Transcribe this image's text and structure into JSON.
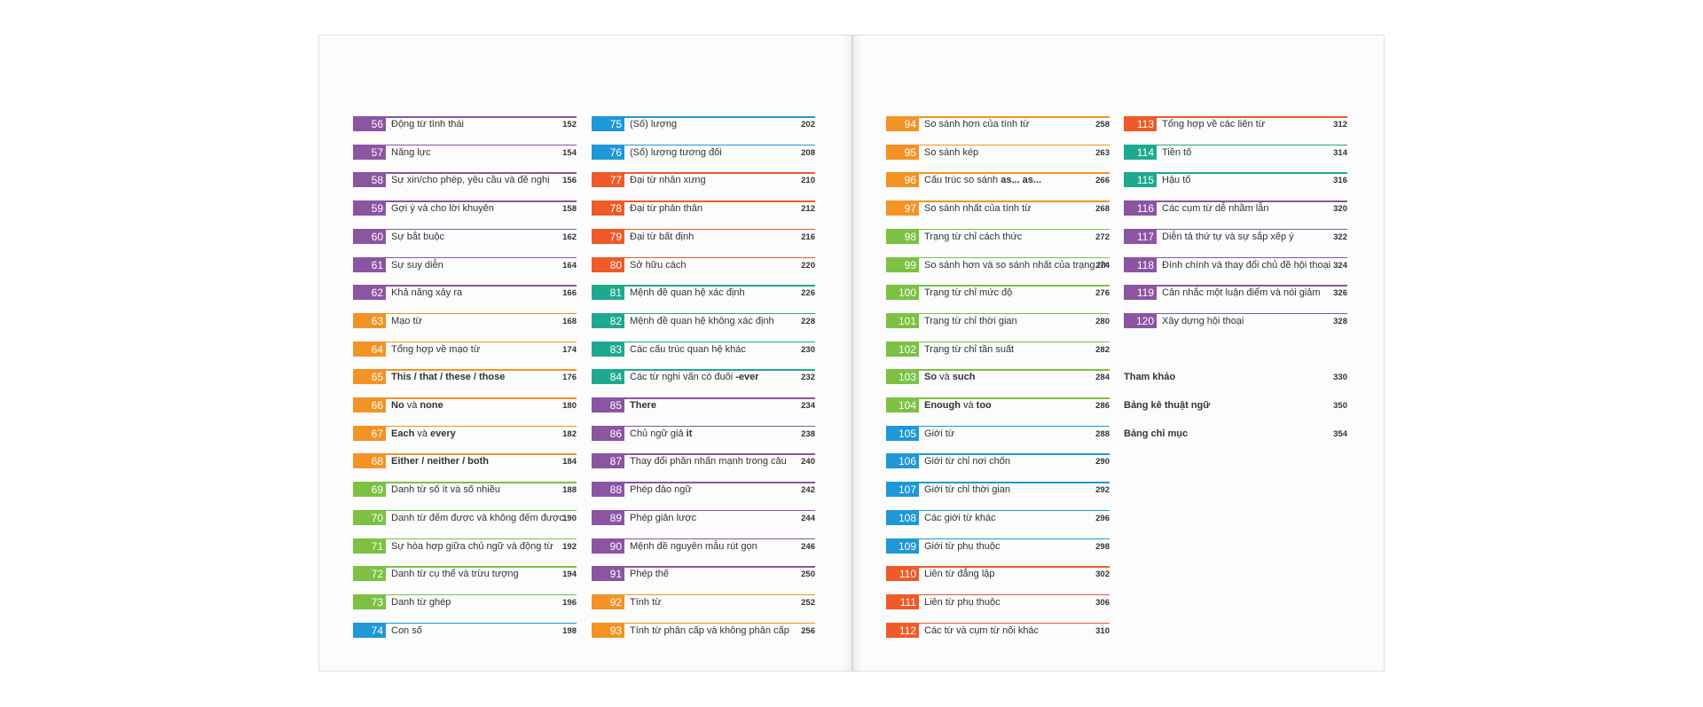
{
  "columns": [
    {
      "entries": [
        {
          "number": 56,
          "title": "Động từ tình thái",
          "page": 152,
          "color": "#8b55a2"
        },
        {
          "number": 57,
          "title": "Năng lực",
          "page": 154,
          "color": "#8b55a2"
        },
        {
          "number": 58,
          "title": "Sự xin/cho phép, yêu cầu và đề nghị",
          "page": 156,
          "color": "#8b55a2"
        },
        {
          "number": 59,
          "title": "Gợi ý và cho lời khuyên",
          "page": 158,
          "color": "#8b55a2"
        },
        {
          "number": 60,
          "title": "Sự bắt buộc",
          "page": 162,
          "color": "#8b55a2"
        },
        {
          "number": 61,
          "title": "Sự suy diễn",
          "page": 164,
          "color": "#8b55a2"
        },
        {
          "number": 62,
          "title": "Khả năng xảy ra",
          "page": 166,
          "color": "#8b55a2"
        },
        {
          "number": 63,
          "title": "Mạo từ",
          "page": 168,
          "color": "#f39325"
        },
        {
          "number": 64,
          "title": "Tổng hợp về mạo từ",
          "page": 174,
          "color": "#f39325"
        },
        {
          "number": 65,
          "title": [
            {
              "text": "This / that / these / those",
              "bold": true
            }
          ],
          "page": 176,
          "color": "#f39325"
        },
        {
          "number": 66,
          "title": [
            {
              "text": "No",
              "bold": true
            },
            {
              "text": " và ",
              "bold": false
            },
            {
              "text": "none",
              "bold": true
            }
          ],
          "page": 180,
          "color": "#f39325"
        },
        {
          "number": 67,
          "title": [
            {
              "text": "Each",
              "bold": true
            },
            {
              "text": " và ",
              "bold": false
            },
            {
              "text": "every",
              "bold": true
            }
          ],
          "page": 182,
          "color": "#f39325"
        },
        {
          "number": 68,
          "title": [
            {
              "text": "Either / neither / both",
              "bold": true
            }
          ],
          "page": 184,
          "color": "#f39325"
        },
        {
          "number": 69,
          "title": "Danh từ số ít và số nhiều",
          "page": 188,
          "color": "#7cc142"
        },
        {
          "number": 70,
          "title": "Danh từ đếm được và không đếm được",
          "page": 190,
          "color": "#7cc142"
        },
        {
          "number": 71,
          "title": "Sự hòa hợp giữa chủ ngữ và động từ",
          "page": 192,
          "color": "#7cc142"
        },
        {
          "number": 72,
          "title": "Danh từ cụ thể và trừu tượng",
          "page": 194,
          "color": "#7cc142"
        },
        {
          "number": 73,
          "title": "Danh từ ghép",
          "page": 196,
          "color": "#7cc142"
        },
        {
          "number": 74,
          "title": "Con số",
          "page": 198,
          "color": "#1e98d7"
        }
      ]
    },
    {
      "entries": [
        {
          "number": 75,
          "title": "(Số) lượng",
          "page": 202,
          "color": "#1e98d7"
        },
        {
          "number": 76,
          "title": "(Số) lượng tương đối",
          "page": 208,
          "color": "#1e98d7"
        },
        {
          "number": 77,
          "title": "Đại từ nhân xưng",
          "page": 210,
          "color": "#f05a28"
        },
        {
          "number": 78,
          "title": "Đại từ phản thân",
          "page": 212,
          "color": "#f05a28"
        },
        {
          "number": 79,
          "title": "Đại từ bất định",
          "page": 216,
          "color": "#f05a28"
        },
        {
          "number": 80,
          "title": "Sở hữu cách",
          "page": 220,
          "color": "#f05a28"
        },
        {
          "number": 81,
          "title": "Mệnh đề quan hệ xác định",
          "page": 226,
          "color": "#1ea98f"
        },
        {
          "number": 82,
          "title": "Mệnh đề quan hệ không xác định",
          "page": 228,
          "color": "#1ea98f"
        },
        {
          "number": 83,
          "title": "Các cấu trúc quan hệ khác",
          "page": 230,
          "color": "#1ea98f"
        },
        {
          "number": 84,
          "title": [
            {
              "text": "Các từ nghi vấn có đuôi ",
              "bold": false
            },
            {
              "text": "-ever",
              "bold": true
            }
          ],
          "page": 232,
          "color": "#1ea98f"
        },
        {
          "number": 85,
          "title": [
            {
              "text": "There",
              "bold": true
            }
          ],
          "page": 234,
          "color": "#8b55a2"
        },
        {
          "number": 86,
          "title": [
            {
              "text": "Chủ ngữ giả ",
              "bold": false
            },
            {
              "text": "it",
              "bold": true
            }
          ],
          "page": 238,
          "color": "#8b55a2"
        },
        {
          "number": 87,
          "title": "Thay đổi phần nhấn mạnh trong câu",
          "page": 240,
          "color": "#8b55a2"
        },
        {
          "number": 88,
          "title": "Phép đảo ngữ",
          "page": 242,
          "color": "#8b55a2"
        },
        {
          "number": 89,
          "title": "Phép giản lược",
          "page": 244,
          "color": "#8b55a2"
        },
        {
          "number": 90,
          "title": "Mệnh đề nguyên mẫu rút gọn",
          "page": 246,
          "color": "#8b55a2"
        },
        {
          "number": 91,
          "title": "Phép thế",
          "page": 250,
          "color": "#8b55a2"
        },
        {
          "number": 92,
          "title": "Tính từ",
          "page": 252,
          "color": "#f39325"
        },
        {
          "number": 93,
          "title": "Tính từ phân cấp và không phân cấp",
          "page": 256,
          "color": "#f39325"
        }
      ]
    },
    {
      "entries": [
        {
          "number": 94,
          "title": "So sánh hơn của tính từ",
          "page": 258,
          "color": "#f39325"
        },
        {
          "number": 95,
          "title": "So sánh kép",
          "page": 263,
          "color": "#f39325"
        },
        {
          "number": 96,
          "title": [
            {
              "text": "Cấu trúc so sánh ",
              "bold": false
            },
            {
              "text": "as... as...",
              "bold": true
            }
          ],
          "page": 266,
          "color": "#f39325"
        },
        {
          "number": 97,
          "title": "So sánh nhất của tính từ",
          "page": 268,
          "color": "#f39325"
        },
        {
          "number": 98,
          "title": "Trạng từ chỉ cách thức",
          "page": 272,
          "color": "#7cc142"
        },
        {
          "number": 99,
          "title": "So sánh hơn và so sánh nhất của trạng từ",
          "page": 274,
          "color": "#7cc142"
        },
        {
          "number": 100,
          "title": "Trạng từ chỉ mức độ",
          "page": 276,
          "color": "#7cc142"
        },
        {
          "number": 101,
          "title": "Trạng từ chỉ thời gian",
          "page": 280,
          "color": "#7cc142"
        },
        {
          "number": 102,
          "title": "Trạng từ chỉ tần suất",
          "page": 282,
          "color": "#7cc142"
        },
        {
          "number": 103,
          "title": [
            {
              "text": "So",
              "bold": true
            },
            {
              "text": " và ",
              "bold": false
            },
            {
              "text": "such",
              "bold": true
            }
          ],
          "page": 284,
          "color": "#7cc142"
        },
        {
          "number": 104,
          "title": [
            {
              "text": "Enough",
              "bold": true
            },
            {
              "text": " và ",
              "bold": false
            },
            {
              "text": "too",
              "bold": true
            }
          ],
          "page": 286,
          "color": "#7cc142"
        },
        {
          "number": 105,
          "title": "Giới từ",
          "page": 288,
          "color": "#1e98d7"
        },
        {
          "number": 106,
          "title": "Giới từ chỉ nơi chốn",
          "page": 290,
          "color": "#1e98d7"
        },
        {
          "number": 107,
          "title": "Giới từ chỉ thời gian",
          "page": 292,
          "color": "#1e98d7"
        },
        {
          "number": 108,
          "title": "Các giới từ khác",
          "page": 296,
          "color": "#1e98d7"
        },
        {
          "number": 109,
          "title": "Giới từ phụ thuộc",
          "page": 298,
          "color": "#1e98d7"
        },
        {
          "number": 110,
          "title": "Liên từ đẳng lập",
          "page": 302,
          "color": "#f05a28"
        },
        {
          "number": 111,
          "title": "Liên từ phụ thuộc",
          "page": 306,
          "color": "#f05a28"
        },
        {
          "number": 112,
          "title": "Các từ và cụm từ nối khác",
          "page": 310,
          "color": "#f05a28"
        }
      ]
    },
    {
      "entries": [
        {
          "number": 113,
          "title": "Tổng hợp về các liên từ",
          "page": 312,
          "color": "#f05a28"
        },
        {
          "number": 114,
          "title": "Tiền tố",
          "page": 314,
          "color": "#1ea98f"
        },
        {
          "number": 115,
          "title": "Hậu tố",
          "page": 316,
          "color": "#1ea98f"
        },
        {
          "number": 116,
          "title": "Các cụm từ dễ nhầm lẫn",
          "page": 320,
          "color": "#8b55a2"
        },
        {
          "number": 117,
          "title": "Diễn tả thứ tự và sự sắp xếp ý",
          "page": 322,
          "color": "#8b55a2"
        },
        {
          "number": 118,
          "title": "Đính chính và thay đổi chủ đề hội thoại",
          "page": 324,
          "color": "#8b55a2"
        },
        {
          "number": 119,
          "title": "Cân nhắc một luận điểm và nói giảm",
          "page": 326,
          "color": "#8b55a2"
        },
        {
          "number": 120,
          "title": "Xây dựng hội thoại",
          "page": 328,
          "color": "#8b55a2"
        }
      ],
      "extras": [
        {
          "title": "Tham khảo",
          "page": 330
        },
        {
          "title": "Bảng kê thuật ngữ",
          "page": 350
        },
        {
          "title": "Bảng chỉ mục",
          "page": 354
        }
      ]
    }
  ]
}
